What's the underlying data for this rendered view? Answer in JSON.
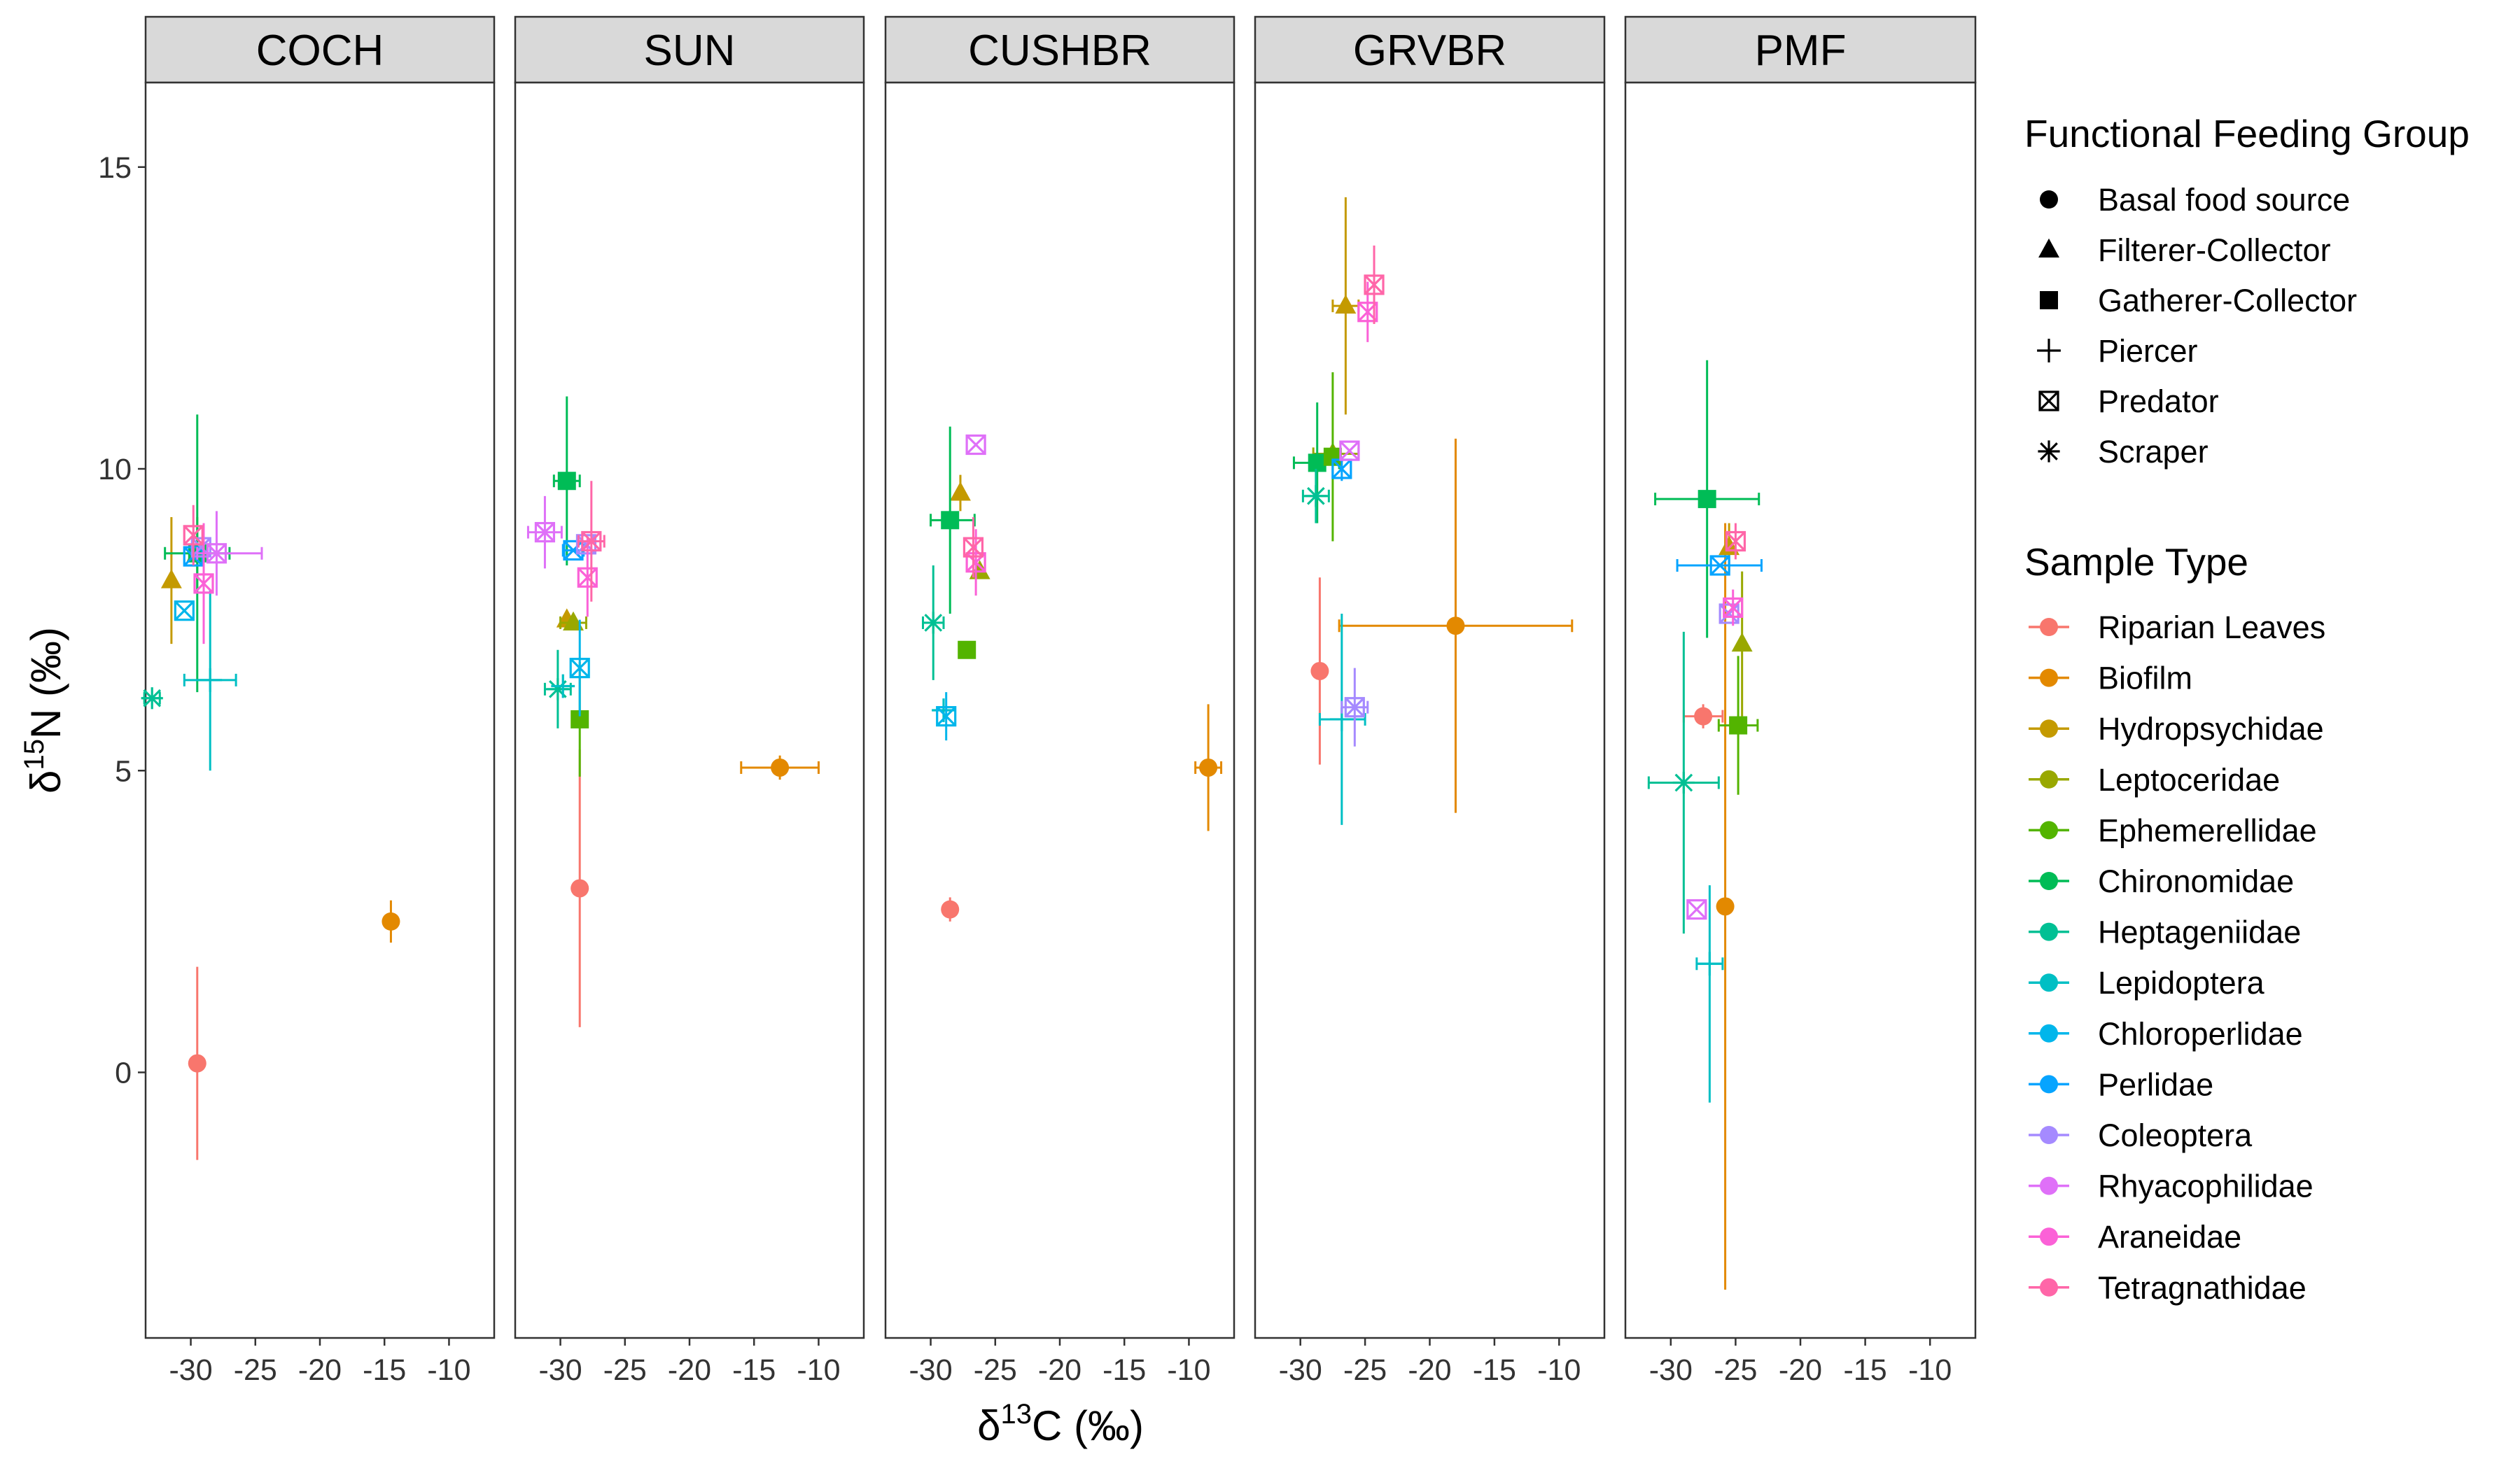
{
  "chart_data": {
    "type": "scatter",
    "facet_labels": [
      "COCH",
      "SUN",
      "CUSHBR",
      "GRVBR",
      "PMF"
    ],
    "x_axis": {
      "label": "δ13C (‰)",
      "ticks": [
        -30,
        -25,
        -20,
        -15,
        -10
      ],
      "tick_labels": [
        "-30",
        "-25",
        "-20",
        "-15",
        "-10"
      ],
      "range": [
        -33.5,
        -6.5
      ]
    },
    "y_axis": {
      "label": "δ15N (‰)",
      "ticks": [
        0,
        5,
        10,
        15
      ],
      "tick_labels": [
        "0",
        "5",
        "10",
        "15"
      ],
      "range": [
        -4.4,
        16.4
      ]
    },
    "legend_shape": {
      "title": "Functional Feeding Group",
      "items": [
        {
          "label": "Basal food source",
          "shape": "circle"
        },
        {
          "label": "Filterer-Collector",
          "shape": "triangle"
        },
        {
          "label": "Gatherer-Collector",
          "shape": "square"
        },
        {
          "label": "Piercer",
          "shape": "plus"
        },
        {
          "label": "Predator",
          "shape": "square-cross"
        },
        {
          "label": "Scraper",
          "shape": "asterisk"
        }
      ]
    },
    "legend_color": {
      "title": "Sample Type",
      "items": [
        {
          "label": "Riparian Leaves",
          "color": "#F8766D"
        },
        {
          "label": "Biofilm",
          "color": "#E38900"
        },
        {
          "label": "Hydropsychidae",
          "color": "#C49A00"
        },
        {
          "label": "Leptoceridae",
          "color": "#99A800"
        },
        {
          "label": "Ephemerellidae",
          "color": "#53B400"
        },
        {
          "label": "Chironomidae",
          "color": "#00BC56"
        },
        {
          "label": "Heptageniidae",
          "color": "#00C094"
        },
        {
          "label": "Lepidoptera",
          "color": "#00BFC4"
        },
        {
          "label": "Chloroperlidae",
          "color": "#00B6EB"
        },
        {
          "label": "Perlidae",
          "color": "#06A4FF"
        },
        {
          "label": "Coleoptera",
          "color": "#A58AFF"
        },
        {
          "label": "Rhyacophilidae",
          "color": "#DF70F8"
        },
        {
          "label": "Araneidae",
          "color": "#FB61D7"
        },
        {
          "label": "Tetragnathidae",
          "color": "#FF66A8"
        }
      ]
    },
    "points": [
      {
        "facet": "COCH",
        "type": "Riparian Leaves",
        "shape": "circle",
        "x": -29.5,
        "y": 0.15,
        "ylo": -1.45,
        "yhi": 1.75
      },
      {
        "facet": "COCH",
        "type": "Biofilm",
        "shape": "circle",
        "x": -14.5,
        "y": 2.5,
        "ylo": 2.15,
        "yhi": 2.85
      },
      {
        "facet": "COCH",
        "type": "Hydropsychidae",
        "shape": "triangle",
        "x": -31.5,
        "y": 8.15,
        "ylo": 7.1,
        "yhi": 9.2
      },
      {
        "facet": "COCH",
        "type": "Leptoceridae",
        "shape": "triangle",
        "x": -29.5,
        "y": 8.6,
        "ylo": 8.0,
        "yhi": 9.2
      },
      {
        "facet": "COCH",
        "type": "Chironomidae",
        "shape": "square",
        "x": -29.5,
        "y": 8.6,
        "ylo": 6.3,
        "yhi": 10.9,
        "xlo": -32.0,
        "xhi": -27.0
      },
      {
        "facet": "COCH",
        "type": "Heptageniidae",
        "shape": "asterisk",
        "x": -33.0,
        "y": 6.2,
        "xlo": -33.6,
        "xhi": -32.4
      },
      {
        "facet": "COCH",
        "type": "Lepidoptera",
        "shape": "plus",
        "x": -28.5,
        "y": 6.5,
        "ylo": 5.0,
        "yhi": 8.0,
        "xlo": -30.5,
        "xhi": -26.5
      },
      {
        "facet": "COCH",
        "type": "Chloroperlidae",
        "shape": "square-cross",
        "x": -30.5,
        "y": 7.65
      },
      {
        "facet": "COCH",
        "type": "Perlidae",
        "shape": "square-cross",
        "x": -29.8,
        "y": 8.55
      },
      {
        "facet": "COCH",
        "type": "Coleoptera",
        "shape": "square-cross",
        "x": -29.2,
        "y": 8.7
      },
      {
        "facet": "COCH",
        "type": "Rhyacophilidae",
        "shape": "square-cross",
        "x": -28.0,
        "y": 8.6,
        "ylo": 7.9,
        "yhi": 9.3,
        "xlo": -29.5,
        "xhi": -24.5
      },
      {
        "facet": "COCH",
        "type": "Araneidae",
        "shape": "square-cross",
        "x": -29.0,
        "y": 8.1,
        "ylo": 7.1,
        "yhi": 9.1
      },
      {
        "facet": "COCH",
        "type": "Tetragnathidae",
        "shape": "square-cross",
        "x": -29.8,
        "y": 8.9,
        "ylo": 8.4,
        "yhi": 9.4
      },
      {
        "facet": "SUN",
        "type": "Riparian Leaves",
        "shape": "circle",
        "x": -28.5,
        "y": 3.05,
        "ylo": 0.75,
        "yhi": 5.35
      },
      {
        "facet": "SUN",
        "type": "Biofilm",
        "shape": "circle",
        "x": -13.0,
        "y": 5.05,
        "ylo": 4.85,
        "yhi": 5.25,
        "xlo": -16.0,
        "xhi": -10.0
      },
      {
        "facet": "SUN",
        "type": "Hydropsychidae",
        "shape": "triangle",
        "x": -29.5,
        "y": 7.5
      },
      {
        "facet": "SUN",
        "type": "Leptoceridae",
        "shape": "triangle",
        "x": -29.0,
        "y": 7.45,
        "xlo": -30.0,
        "xhi": -28.0
      },
      {
        "facet": "SUN",
        "type": "Ephemerellidae",
        "shape": "square",
        "x": -28.5,
        "y": 5.85,
        "ylo": 4.9,
        "yhi": 6.8
      },
      {
        "facet": "SUN",
        "type": "Chironomidae",
        "shape": "square",
        "x": -29.5,
        "y": 9.8,
        "ylo": 8.4,
        "yhi": 11.2,
        "xlo": -30.5,
        "xhi": -28.5
      },
      {
        "facet": "SUN",
        "type": "Heptageniidae",
        "shape": "asterisk",
        "x": -30.2,
        "y": 6.35,
        "ylo": 5.7,
        "yhi": 7.0,
        "xlo": -31.2,
        "xhi": -29.2
      },
      {
        "facet": "SUN",
        "type": "Lepidoptera",
        "shape": "plus",
        "x": -29.8,
        "y": 6.4
      },
      {
        "facet": "SUN",
        "type": "Chloroperlidae",
        "shape": "square-cross",
        "x": -28.5,
        "y": 6.7,
        "ylo": 5.9,
        "yhi": 7.5
      },
      {
        "facet": "SUN",
        "type": "Perlidae",
        "shape": "square-cross",
        "x": -29.0,
        "y": 8.65,
        "xlo": -29.8,
        "xhi": -28.2
      },
      {
        "facet": "SUN",
        "type": "Coleoptera",
        "shape": "square-cross",
        "x": -28.0,
        "y": 8.75
      },
      {
        "facet": "SUN",
        "type": "Rhyacophilidae",
        "shape": "square-cross",
        "x": -31.2,
        "y": 8.95,
        "ylo": 8.35,
        "yhi": 9.55,
        "xlo": -32.5,
        "xhi": -29.9
      },
      {
        "facet": "SUN",
        "type": "Araneidae",
        "shape": "square-cross",
        "x": -27.9,
        "y": 8.2,
        "ylo": 7.55,
        "yhi": 8.85
      },
      {
        "facet": "SUN",
        "type": "Tetragnathidae",
        "shape": "square-cross",
        "x": -27.6,
        "y": 8.8,
        "ylo": 7.8,
        "yhi": 9.8,
        "xlo": -28.6,
        "xhi": -26.6
      },
      {
        "facet": "CUSHBR",
        "type": "Riparian Leaves",
        "shape": "circle",
        "x": -28.5,
        "y": 2.7,
        "ylo": 2.5,
        "yhi": 2.9
      },
      {
        "facet": "CUSHBR",
        "type": "Biofilm",
        "shape": "circle",
        "x": -8.5,
        "y": 5.05,
        "ylo": 4.0,
        "yhi": 6.1,
        "xlo": -9.5,
        "xhi": -7.5
      },
      {
        "facet": "CUSHBR",
        "type": "Hydropsychidae",
        "shape": "triangle",
        "x": -27.7,
        "y": 9.6,
        "ylo": 9.3,
        "yhi": 9.9
      },
      {
        "facet": "CUSHBR",
        "type": "Leptoceridae",
        "shape": "triangle",
        "x": -26.2,
        "y": 8.3
      },
      {
        "facet": "CUSHBR",
        "type": "Ephemerellidae",
        "shape": "square",
        "x": -27.2,
        "y": 7.0
      },
      {
        "facet": "CUSHBR",
        "type": "Chironomidae",
        "shape": "square",
        "x": -28.5,
        "y": 9.15,
        "ylo": 7.6,
        "yhi": 10.7,
        "xlo": -30.0,
        "xhi": -26.6
      },
      {
        "facet": "CUSHBR",
        "type": "Heptageniidae",
        "shape": "asterisk",
        "x": -29.8,
        "y": 7.45,
        "ylo": 6.5,
        "yhi": 8.4,
        "xlo": -30.6,
        "xhi": -29.0
      },
      {
        "facet": "CUSHBR",
        "type": "Lepidoptera",
        "shape": "plus",
        "x": -29.0,
        "y": 6.0
      },
      {
        "facet": "CUSHBR",
        "type": "Chloroperlidae",
        "shape": "square-cross",
        "x": -28.8,
        "y": 5.9,
        "ylo": 5.5,
        "yhi": 6.3
      },
      {
        "facet": "CUSHBR",
        "type": "Rhyacophilidae",
        "shape": "square-cross",
        "x": -26.5,
        "y": 10.4
      },
      {
        "facet": "CUSHBR",
        "type": "Araneidae",
        "shape": "square-cross",
        "x": -26.5,
        "y": 8.45,
        "ylo": 7.9,
        "yhi": 9.0
      },
      {
        "facet": "CUSHBR",
        "type": "Tetragnathidae",
        "shape": "square-cross",
        "x": -26.7,
        "y": 8.7,
        "ylo": 8.2,
        "yhi": 9.2
      },
      {
        "facet": "GRVBR",
        "type": "Riparian Leaves",
        "shape": "circle",
        "x": -28.5,
        "y": 6.65,
        "ylo": 5.1,
        "yhi": 8.2
      },
      {
        "facet": "GRVBR",
        "type": "Biofilm",
        "shape": "circle",
        "x": -18.0,
        "y": 7.4,
        "ylo": 4.3,
        "yhi": 10.5,
        "xlo": -27.0,
        "xhi": -9.0
      },
      {
        "facet": "GRVBR",
        "type": "Hydropsychidae",
        "shape": "triangle",
        "x": -26.5,
        "y": 12.7,
        "ylo": 10.9,
        "yhi": 14.5,
        "xlo": -27.5,
        "xhi": -25.5
      },
      {
        "facet": "GRVBR",
        "type": "Leptoceridae",
        "shape": "triangle",
        "x": -27.5,
        "y": 10.25,
        "xlo": -29.0,
        "xhi": -25.5
      },
      {
        "facet": "GRVBR",
        "type": "Chironomidae",
        "shape": "square",
        "x": -28.7,
        "y": 10.1,
        "ylo": 9.1,
        "yhi": 11.1,
        "xlo": -30.5,
        "xhi": -27.0
      },
      {
        "facet": "GRVBR",
        "type": "Ephemerellidae",
        "shape": "square",
        "x": -27.5,
        "y": 10.2,
        "ylo": 8.8,
        "yhi": 11.6
      },
      {
        "facet": "GRVBR",
        "type": "Heptageniidae",
        "shape": "asterisk",
        "x": -28.8,
        "y": 9.55,
        "ylo": 9.1,
        "yhi": 10.0,
        "xlo": -29.8,
        "xhi": -27.8
      },
      {
        "facet": "GRVBR",
        "type": "Lepidoptera",
        "shape": "plus",
        "x": -26.8,
        "y": 5.85,
        "ylo": 4.1,
        "yhi": 7.6,
        "xlo": -28.5,
        "xhi": -25.0
      },
      {
        "facet": "GRVBR",
        "type": "Perlidae",
        "shape": "square-cross",
        "x": -26.8,
        "y": 10.0,
        "ylo": 9.8,
        "yhi": 10.2
      },
      {
        "facet": "GRVBR",
        "type": "Coleoptera",
        "shape": "square-cross",
        "x": -25.8,
        "y": 6.05,
        "ylo": 5.4,
        "yhi": 6.7,
        "xlo": -26.8,
        "xhi": -24.8
      },
      {
        "facet": "GRVBR",
        "type": "Rhyacophilidae",
        "shape": "square-cross",
        "x": -26.2,
        "y": 10.3
      },
      {
        "facet": "GRVBR",
        "type": "Araneidae",
        "shape": "square-cross",
        "x": -24.8,
        "y": 12.6,
        "ylo": 12.1,
        "yhi": 13.1
      },
      {
        "facet": "GRVBR",
        "type": "Tetragnathidae",
        "shape": "square-cross",
        "x": -24.3,
        "y": 13.05,
        "ylo": 12.4,
        "yhi": 13.7
      },
      {
        "facet": "PMF",
        "type": "Riparian Leaves",
        "shape": "circle",
        "x": -27.5,
        "y": 5.9,
        "ylo": 5.7,
        "yhi": 6.1,
        "xlo": -29.0,
        "xhi": -26.0
      },
      {
        "facet": "PMF",
        "type": "Biofilm",
        "shape": "circle",
        "x": -25.8,
        "y": 2.75,
        "ylo": -3.6,
        "yhi": 9.1
      },
      {
        "facet": "PMF",
        "type": "Hydropsychidae",
        "shape": "triangle",
        "x": -25.5,
        "y": 8.7,
        "ylo": 8.3,
        "yhi": 9.1
      },
      {
        "facet": "PMF",
        "type": "Leptoceridae",
        "shape": "triangle",
        "x": -24.5,
        "y": 7.1,
        "ylo": 5.9,
        "yhi": 8.3
      },
      {
        "facet": "PMF",
        "type": "Ephemerellidae",
        "shape": "square",
        "x": -24.8,
        "y": 5.75,
        "ylo": 4.6,
        "yhi": 6.9,
        "xlo": -26.3,
        "xhi": -23.3
      },
      {
        "facet": "PMF",
        "type": "Chironomidae",
        "shape": "square",
        "x": -27.2,
        "y": 9.5,
        "ylo": 7.2,
        "yhi": 11.8,
        "xlo": -31.2,
        "xhi": -23.2
      },
      {
        "facet": "PMF",
        "type": "Heptageniidae",
        "shape": "asterisk",
        "x": -29.0,
        "y": 4.8,
        "ylo": 2.3,
        "yhi": 7.3,
        "xlo": -31.7,
        "xhi": -26.3
      },
      {
        "facet": "PMF",
        "type": "Lepidoptera",
        "shape": "plus",
        "x": -27.0,
        "y": 1.8,
        "ylo": -0.5,
        "yhi": 3.1,
        "xlo": -28.0,
        "xhi": -26.0
      },
      {
        "facet": "PMF",
        "type": "Perlidae",
        "shape": "square-cross",
        "x": -26.2,
        "y": 8.4,
        "xlo": -29.5,
        "xhi": -23.0
      },
      {
        "facet": "PMF",
        "type": "Coleoptera",
        "shape": "square-cross",
        "x": -25.5,
        "y": 7.6
      },
      {
        "facet": "PMF",
        "type": "Rhyacophilidae",
        "shape": "square-cross",
        "x": -28.0,
        "y": 2.7
      },
      {
        "facet": "PMF",
        "type": "Araneidae",
        "shape": "square-cross",
        "x": -25.2,
        "y": 7.7,
        "ylo": 7.4,
        "yhi": 8.0
      },
      {
        "facet": "PMF",
        "type": "Tetragnathidae",
        "shape": "square-cross",
        "x": -25.0,
        "y": 8.8,
        "ylo": 8.5,
        "yhi": 9.1
      }
    ]
  }
}
